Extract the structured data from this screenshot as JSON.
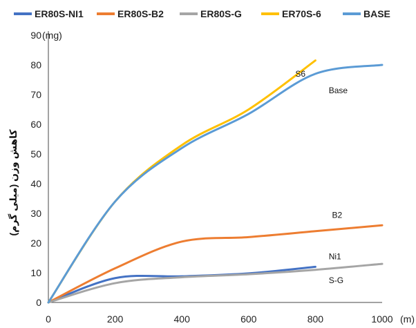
{
  "chart_data": {
    "type": "line",
    "title": "",
    "xlabel": "",
    "ylabel": "کاهش وزن (میلی گرم)",
    "x_unit": "(m)",
    "y_unit": "(mg)",
    "xlim": [
      0,
      1000
    ],
    "ylim": [
      0,
      90
    ],
    "x_ticks": [
      0,
      200,
      400,
      600,
      800,
      1000
    ],
    "y_ticks": [
      0,
      10,
      20,
      30,
      40,
      50,
      60,
      70,
      80,
      90
    ],
    "grid": false,
    "legend_position": "top",
    "series": [
      {
        "name": "ER80S-NI1",
        "color": "#4472C4",
        "x": [
          0,
          200,
          400,
          600,
          800
        ],
        "y": [
          0,
          8.2,
          8.8,
          9.8,
          12
        ]
      },
      {
        "name": "ER80S-B2",
        "color": "#ED7D31",
        "x": [
          0,
          200,
          400,
          600,
          800,
          1000
        ],
        "y": [
          0,
          11.5,
          20.5,
          22,
          24,
          26
        ]
      },
      {
        "name": "ER80S-G",
        "color": "#A5A5A5",
        "x": [
          0,
          200,
          400,
          600,
          800,
          1000
        ],
        "y": [
          0,
          6.5,
          8.5,
          9.5,
          11,
          13
        ]
      },
      {
        "name": "ER70S-6",
        "color": "#FFC000",
        "x": [
          0,
          200,
          400,
          600,
          800
        ],
        "y": [
          0,
          34,
          53,
          65,
          81.5
        ]
      },
      {
        "name": "BASE",
        "color": "#5B9BD5",
        "x": [
          0,
          200,
          400,
          600,
          800,
          1000
        ],
        "y": [
          0,
          34,
          52,
          63.5,
          77,
          80
        ]
      }
    ],
    "annotations": [
      {
        "text": "S6",
        "x": 740,
        "y": 76
      },
      {
        "text": "Base",
        "x": 840,
        "y": 70.5
      },
      {
        "text": "B2",
        "x": 850,
        "y": 28.5
      },
      {
        "text": "Ni1",
        "x": 840,
        "y": 14.5
      },
      {
        "text": "S-G",
        "x": 840,
        "y": 6.5
      }
    ]
  }
}
